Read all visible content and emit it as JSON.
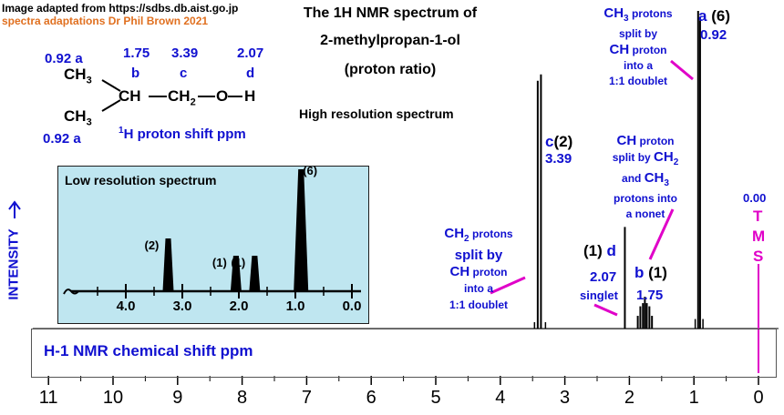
{
  "credit": {
    "line1": "Image adapted from https://sdbs.db.aist.go.jp",
    "line2": "spectra adaptations Dr Phil Brown 2021"
  },
  "title": {
    "line1": "The 1H NMR spectrum of",
    "line2": "2-methylpropan-1-ol",
    "line3": "(proton ratio)",
    "subtitle": "High resolution spectrum"
  },
  "structure": {
    "shift_a_top": "0.92",
    "letter_a_top": "a",
    "shift_b": "1.75",
    "letter_b": "b",
    "shift_c": "3.39",
    "letter_c": "c",
    "shift_d": "2.07",
    "letter_d": "d",
    "ch3_top": "CH",
    "ch3_top_sub": "3",
    "ch": "CH",
    "ch2": "CH",
    "ch2_sub": "2",
    "o": "O",
    "h": "H",
    "ch3_bottom": "CH",
    "ch3_bottom_sub": "3",
    "shift_a_bottom": "0.92",
    "letter_a_bottom": "a",
    "caption_sup": "1",
    "caption": "H  proton shift  ppm"
  },
  "labels": {
    "y_axis": "INTENSITY",
    "x_axis": "H-1 NMR chemical shift  ppm",
    "tms_value": "0.00",
    "tms_t": "T",
    "tms_m": "M",
    "tms_s": "S",
    "peak_a_letter": "a",
    "peak_a_ratio": "(6)",
    "peak_a_shift": "0.92",
    "peak_c_letter": "c",
    "peak_c_ratio": "(2)",
    "peak_c_shift": "3.39",
    "peak_d_ratio": "(1)",
    "peak_d_letter": "d",
    "peak_d_shift": "2.07",
    "peak_d_mult": "singlet",
    "peak_b_letter": "b",
    "peak_b_ratio": "(1)",
    "peak_b_shift": "1.75",
    "note_a": {
      "l1a": "CH",
      "l1sub": "3",
      "l1b": " protons",
      "l2": "split by",
      "l3a": "CH",
      "l3b": " proton",
      "l4": "into a",
      "l5": "1:1 doublet"
    },
    "note_b": {
      "l1a": "CH",
      "l1b": " proton",
      "l2a": "split by ",
      "l2b": "CH",
      "l2sub": "2",
      "l3a": "and ",
      "l3b": "CH",
      "l3sub": "3",
      "l4": "protons into",
      "l5": "a nonet"
    },
    "note_c": {
      "l1a": "CH",
      "l1sub": "2",
      "l1b": " protons",
      "l2": "split by",
      "l3a": "CH",
      "l3b": " proton",
      "l4": "into a",
      "l5": "1:1 doublet"
    }
  },
  "inset": {
    "title": "Low resolution spectrum",
    "peak_labels": [
      "(2)",
      "(1)",
      "(1)",
      "(6)"
    ],
    "ticks": [
      "4.0",
      "3.0",
      "2.0",
      "1.0",
      "0.0"
    ]
  },
  "chart_data": [
    {
      "type": "line",
      "title": "The 1H NMR spectrum of 2-methylpropan-1-ol",
      "xlabel": "H-1 NMR chemical shift  ppm",
      "ylabel": "INTENSITY",
      "xlim": [
        11.2,
        -0.2
      ],
      "x_ticks": [
        "11",
        "10",
        "9",
        "8",
        "7",
        "6",
        "5",
        "4",
        "3",
        "2",
        "1",
        "0"
      ],
      "peaks": [
        {
          "label": "c",
          "shift": 3.39,
          "ratio": 2,
          "lines": [
            {
              "x": 3.42,
              "h": 0.78
            },
            {
              "x": 3.37,
              "h": 0.8
            }
          ]
        },
        {
          "label": "d",
          "shift": 2.07,
          "ratio": 1,
          "lines": [
            {
              "x": 2.07,
              "h": 0.32
            }
          ]
        },
        {
          "label": "b",
          "shift": 1.75,
          "ratio": 1,
          "lines": [
            {
              "x": 1.87,
              "h": 0.04
            },
            {
              "x": 1.83,
              "h": 0.07
            },
            {
              "x": 1.79,
              "h": 0.08
            },
            {
              "x": 1.76,
              "h": 0.1
            },
            {
              "x": 1.73,
              "h": 0.08
            },
            {
              "x": 1.69,
              "h": 0.07
            },
            {
              "x": 1.65,
              "h": 0.04
            }
          ]
        },
        {
          "label": "a",
          "shift": 0.92,
          "ratio": 6,
          "lines": [
            {
              "x": 0.935,
              "h": 1.0
            },
            {
              "x": 0.905,
              "h": 0.97
            }
          ]
        }
      ],
      "tms": 0.0
    },
    {
      "type": "line",
      "title": "Low resolution spectrum",
      "xlim": [
        4.6,
        -0.1
      ],
      "x_ticks": [
        "4.0",
        "3.0",
        "2.0",
        "1.0",
        "0.0"
      ],
      "peaks": [
        {
          "shift": 3.25,
          "ratio": 2
        },
        {
          "shift": 2.05,
          "ratio": 1
        },
        {
          "shift": 1.72,
          "ratio": 1
        },
        {
          "shift": 0.9,
          "ratio": 6
        }
      ]
    }
  ]
}
